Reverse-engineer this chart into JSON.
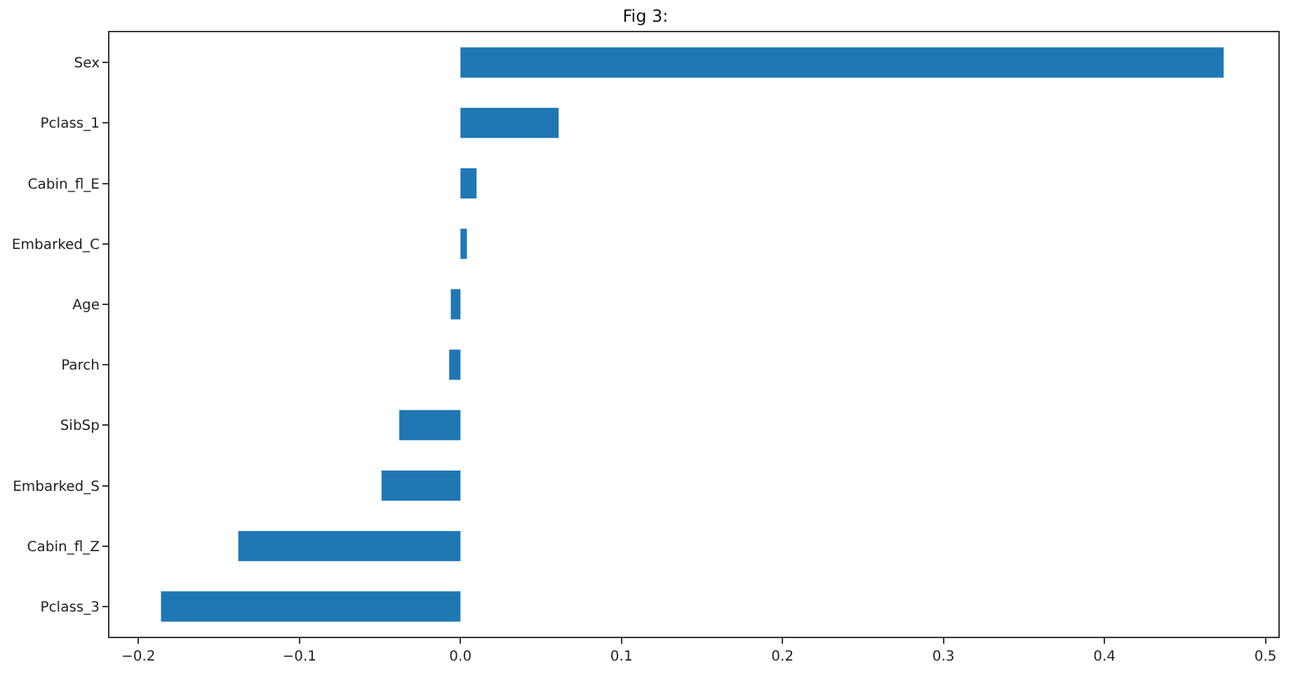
{
  "chart_data": {
    "type": "bar",
    "orientation": "horizontal",
    "title": "Fig 3:",
    "categories": [
      "Sex",
      "Pclass_1",
      "Cabin_fl_E",
      "Embarked_C",
      "Age",
      "Parch",
      "SibSp",
      "Embarked_S",
      "Cabin_fl_Z",
      "Pclass_3"
    ],
    "values": [
      0.474,
      0.061,
      0.01,
      0.004,
      -0.006,
      -0.007,
      -0.038,
      -0.049,
      -0.138,
      -0.186
    ],
    "color": "#1f77b4",
    "xlim": [
      -0.218,
      0.508
    ],
    "xticks": [
      {
        "value": -0.2,
        "label": "−0.2"
      },
      {
        "value": -0.1,
        "label": "−0.1"
      },
      {
        "value": 0.0,
        "label": "0.0"
      },
      {
        "value": 0.1,
        "label": "0.1"
      },
      {
        "value": 0.2,
        "label": "0.2"
      },
      {
        "value": 0.3,
        "label": "0.3"
      },
      {
        "value": 0.4,
        "label": "0.4"
      },
      {
        "value": 0.5,
        "label": "0.5"
      }
    ],
    "legend": false
  }
}
